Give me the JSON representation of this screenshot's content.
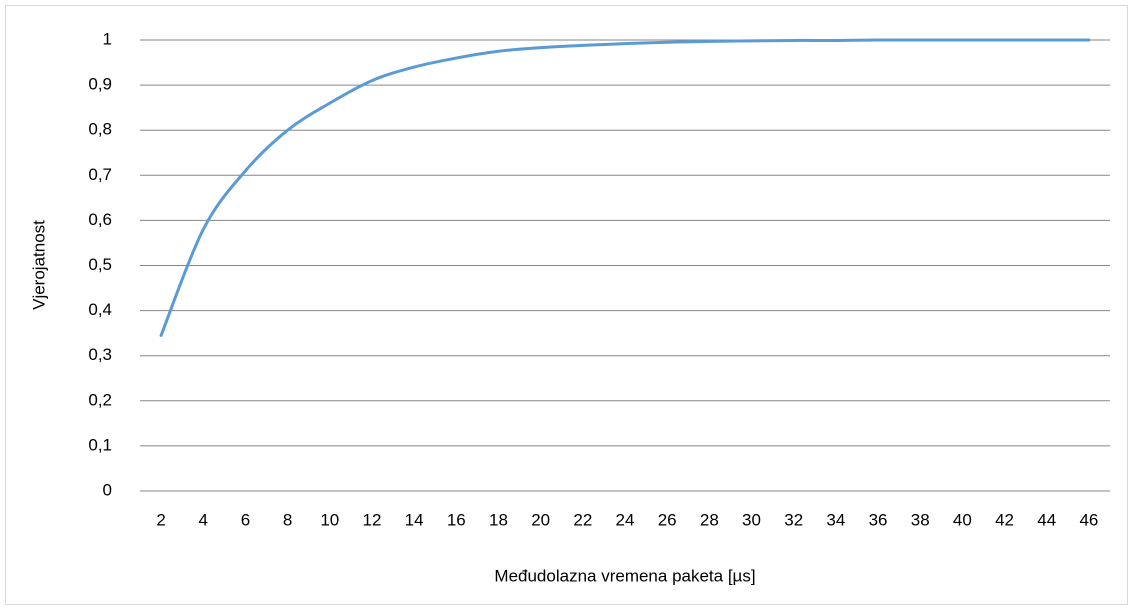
{
  "chart_data": {
    "type": "line",
    "x_label": "Međudolazna vremena paketa [µs]",
    "y_label": "Vjerojatnost",
    "categories": [
      2,
      4,
      6,
      8,
      10,
      12,
      14,
      16,
      18,
      20,
      22,
      24,
      26,
      28,
      30,
      32,
      34,
      36,
      38,
      40,
      42,
      44,
      46
    ],
    "series": [
      {
        "color": "#5b9bd5",
        "values": [
          0.345,
          0.58,
          0.71,
          0.8,
          0.86,
          0.91,
          0.94,
          0.96,
          0.975,
          0.983,
          0.988,
          0.992,
          0.995,
          0.997,
          0.998,
          0.999,
          0.999,
          1,
          1,
          1,
          1,
          1,
          1
        ]
      }
    ],
    "ylim": [
      0,
      1
    ],
    "yticks": [
      0,
      {
        "value": 0.1,
        "label": "0,1"
      },
      {
        "value": 0.2,
        "label": "0,2"
      },
      {
        "value": 0.3,
        "label": "0,3"
      },
      {
        "value": 0.4,
        "label": "0,4"
      },
      {
        "value": 0.5,
        "label": "0,5"
      },
      {
        "value": 0.6,
        "label": "0,6"
      },
      {
        "value": 0.7,
        "label": "0,7"
      },
      {
        "value": 0.8,
        "label": "0,8"
      },
      {
        "value": 0.9,
        "label": "0,9"
      },
      1
    ],
    "grid": true
  }
}
